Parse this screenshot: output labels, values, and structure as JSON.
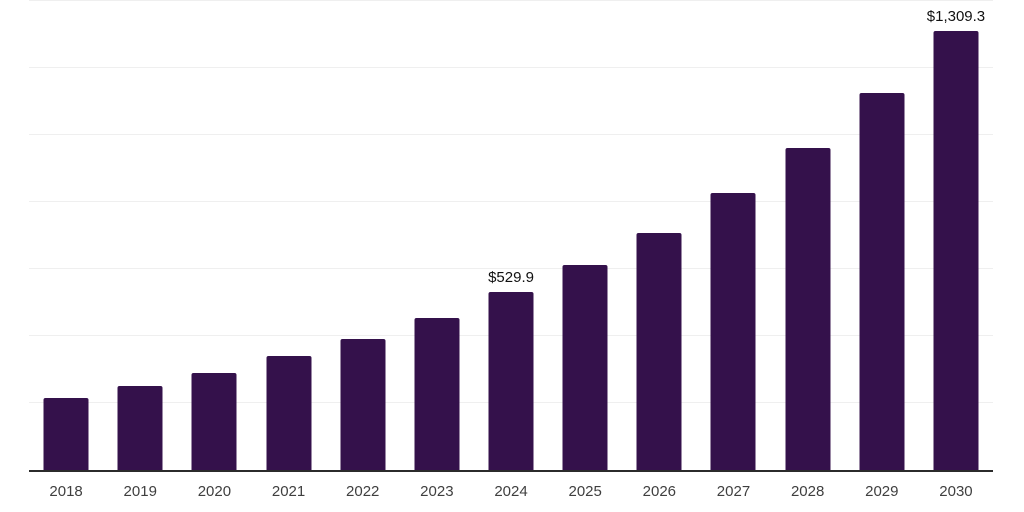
{
  "chart_data": {
    "type": "bar",
    "title": "",
    "xlabel": "",
    "ylabel": "",
    "categories": [
      "2018",
      "2019",
      "2020",
      "2021",
      "2022",
      "2023",
      "2024",
      "2025",
      "2026",
      "2027",
      "2028",
      "2029",
      "2030"
    ],
    "values": [
      215,
      251,
      290,
      340,
      391,
      455,
      529.9,
      612,
      709,
      827,
      961,
      1124,
      1309.3
    ],
    "point_labels": [
      "",
      "",
      "",
      "",
      "",
      "",
      "$529.9",
      "",
      "",
      "",
      "",
      "",
      "$1,309.3"
    ],
    "ylim": [
      0,
      1400
    ],
    "gridline_values": [
      200,
      400,
      600,
      800,
      1000,
      1200,
      1400
    ],
    "grid": "horizontal",
    "legend": "none",
    "y_axis_tick_labels_visible": false
  },
  "colors": {
    "background": "#ffffff",
    "bar": "#34114B",
    "gridline": "#efefef",
    "axis_line": "#2b2b2b",
    "tick_label": "#3f3f3f",
    "data_label": "#111111"
  }
}
